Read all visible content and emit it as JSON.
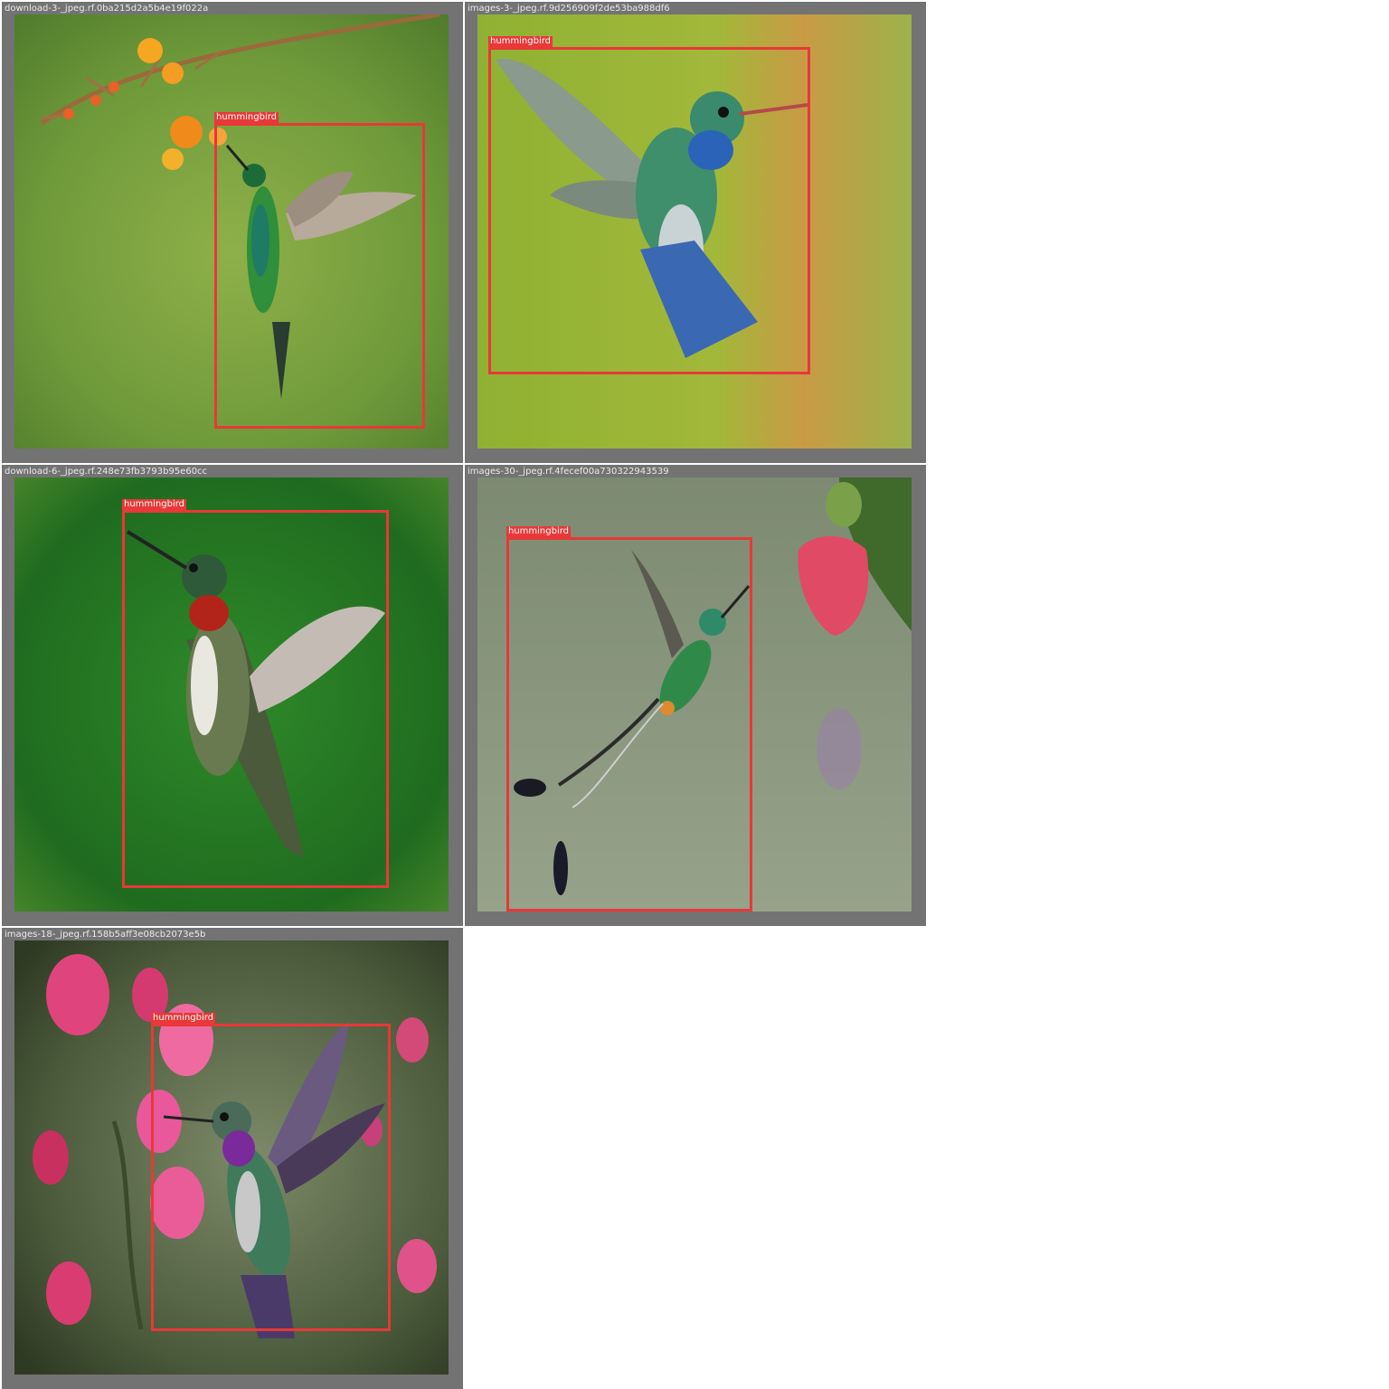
{
  "tiles": [
    {
      "filename": "download-3-_jpeg.rf.0ba215d2a5b4e19f022a",
      "label": "hummingbird"
    },
    {
      "filename": "images-3-_jpeg.rf.9d256909f2de53ba988df6",
      "label": "hummingbird"
    },
    {
      "filename": "download-6-_jpeg.rf.248e73fb3793b95e60cc",
      "label": "hummingbird"
    },
    {
      "filename": "images-30-_jpeg.rf.4fecef00a730322943539",
      "label": "hummingbird"
    },
    {
      "filename": "images-18-_jpeg.rf.158b5aff3e08cb2073e5b",
      "label": "hummingbird"
    }
  ],
  "colors": {
    "tile_border": "#737373",
    "bbox": "#e83838",
    "caption_text": "#eaeaea"
  },
  "icons": {
    "bird": "hummingbird-illustration",
    "flower": "flower-illustration"
  }
}
